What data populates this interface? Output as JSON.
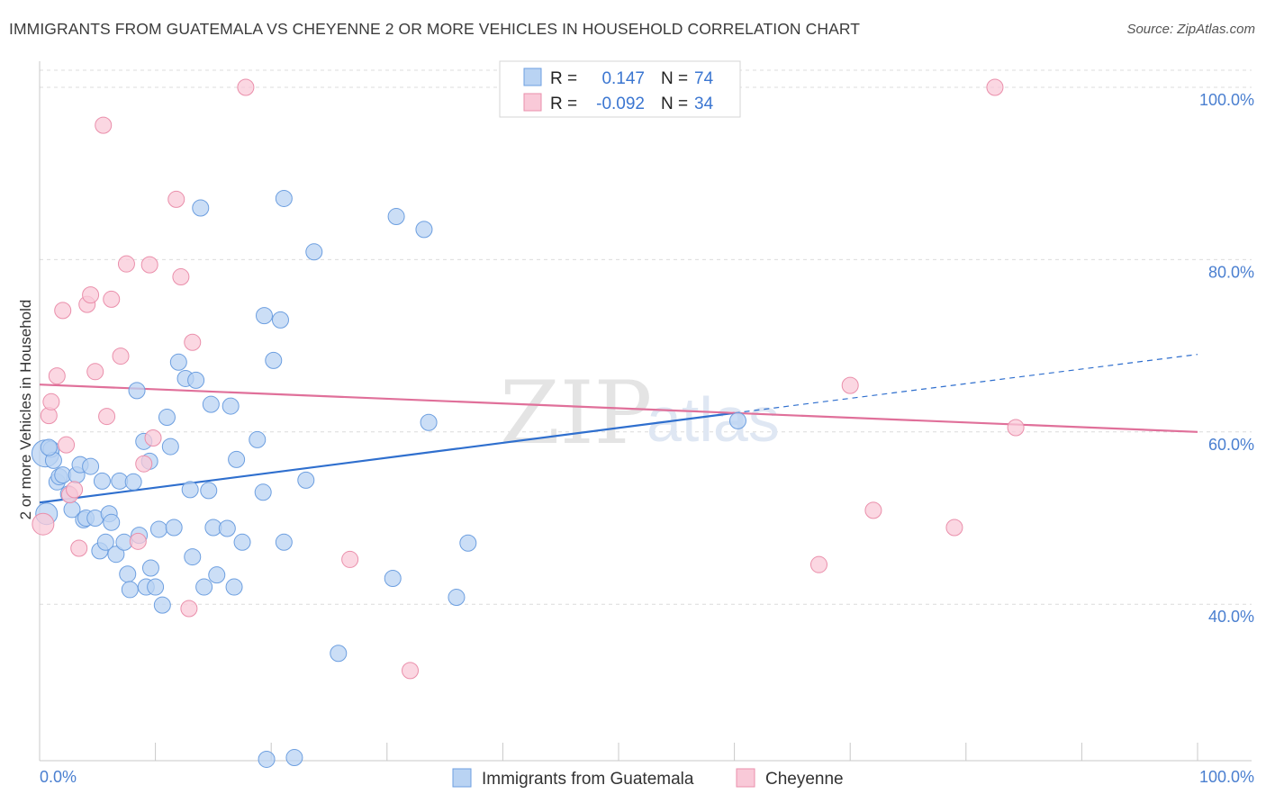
{
  "title": "IMMIGRANTS FROM GUATEMALA VS CHEYENNE 2 OR MORE VEHICLES IN HOUSEHOLD CORRELATION CHART",
  "source": "Source: ZipAtlas.com",
  "watermark": {
    "zip": "ZIP",
    "atlas": "atlas"
  },
  "colors": {
    "blue_fill": "#b9d3f3",
    "blue_stroke": "#6d9fe0",
    "blue_line": "#2f6fce",
    "pink_fill": "#f9c9d8",
    "pink_stroke": "#ea8fab",
    "pink_line": "#e0709a",
    "grid": "#dcdcdc",
    "axis_text": "#4a7fd0"
  },
  "legend": {
    "rows": [
      {
        "r_label": "R =",
        "r_value": "0.147",
        "n_label": "N =",
        "n_value": "74",
        "color": "blue"
      },
      {
        "r_label": "R =",
        "r_value": "-0.092",
        "n_label": "N =",
        "n_value": "34",
        "color": "pink"
      }
    ]
  },
  "chart_data": {
    "type": "scatter",
    "xlabel": "",
    "ylabel": "2 or more Vehicles in Household",
    "xlim": [
      0,
      100
    ],
    "ylim": [
      20,
      103
    ],
    "x_tick_labels": [
      "0.0%",
      "100.0%"
    ],
    "y_ticks": [
      40,
      60,
      80,
      100
    ],
    "y_tick_labels": [
      "40.0%",
      "60.0%",
      "80.0%",
      "100.0%"
    ],
    "grid": true,
    "legend_position": "top-center",
    "series": [
      {
        "name": "Immigrants from Guatemala",
        "color": "blue",
        "points": [
          [
            0.5,
            57.5
          ],
          [
            0.6,
            50.5
          ],
          [
            1.0,
            58.0
          ],
          [
            1.2,
            56.7
          ],
          [
            1.5,
            54.2
          ],
          [
            1.7,
            54.8
          ],
          [
            2.0,
            55.0
          ],
          [
            2.5,
            52.8
          ],
          [
            2.8,
            51.0
          ],
          [
            3.2,
            55.0
          ],
          [
            3.5,
            56.2
          ],
          [
            3.8,
            49.8
          ],
          [
            4.0,
            50.0
          ],
          [
            4.4,
            56.0
          ],
          [
            4.8,
            50.0
          ],
          [
            5.2,
            46.2
          ],
          [
            5.4,
            54.3
          ],
          [
            5.7,
            47.2
          ],
          [
            6.0,
            50.5
          ],
          [
            6.2,
            49.5
          ],
          [
            6.6,
            45.8
          ],
          [
            6.9,
            54.3
          ],
          [
            7.3,
            47.2
          ],
          [
            7.6,
            43.5
          ],
          [
            7.8,
            41.7
          ],
          [
            8.1,
            54.2
          ],
          [
            8.4,
            64.8
          ],
          [
            8.6,
            48.0
          ],
          [
            9.0,
            58.9
          ],
          [
            9.2,
            42.0
          ],
          [
            9.5,
            56.6
          ],
          [
            9.6,
            44.2
          ],
          [
            10.0,
            42.0
          ],
          [
            10.3,
            48.7
          ],
          [
            10.6,
            39.9
          ],
          [
            11.0,
            61.7
          ],
          [
            11.3,
            58.3
          ],
          [
            11.6,
            48.9
          ],
          [
            12.0,
            68.1
          ],
          [
            12.6,
            66.2
          ],
          [
            13.0,
            53.3
          ],
          [
            13.2,
            45.5
          ],
          [
            13.5,
            66.0
          ],
          [
            13.9,
            86.0
          ],
          [
            14.2,
            42.0
          ],
          [
            14.6,
            53.2
          ],
          [
            14.8,
            63.2
          ],
          [
            15.0,
            48.9
          ],
          [
            15.3,
            43.4
          ],
          [
            16.2,
            48.8
          ],
          [
            16.5,
            63.0
          ],
          [
            16.8,
            42.0
          ],
          [
            17.0,
            56.8
          ],
          [
            17.5,
            47.2
          ],
          [
            18.8,
            59.1
          ],
          [
            19.3,
            53.0
          ],
          [
            19.4,
            73.5
          ],
          [
            19.6,
            22.0
          ],
          [
            20.2,
            68.3
          ],
          [
            20.8,
            73.0
          ],
          [
            21.1,
            87.1
          ],
          [
            21.1,
            47.2
          ],
          [
            22.0,
            22.2
          ],
          [
            23.0,
            54.4
          ],
          [
            23.7,
            80.9
          ],
          [
            25.8,
            34.3
          ],
          [
            30.5,
            43.0
          ],
          [
            30.8,
            85.0
          ],
          [
            33.2,
            83.5
          ],
          [
            33.6,
            61.1
          ],
          [
            36.0,
            40.8
          ],
          [
            37.0,
            47.1
          ],
          [
            60.3,
            61.3
          ],
          [
            0.8,
            58.2
          ]
        ]
      },
      {
        "name": "Cheyenne",
        "color": "pink",
        "points": [
          [
            0.3,
            49.3
          ],
          [
            0.8,
            61.9
          ],
          [
            1.0,
            63.5
          ],
          [
            1.5,
            66.5
          ],
          [
            2.0,
            74.1
          ],
          [
            2.3,
            58.5
          ],
          [
            2.6,
            52.7
          ],
          [
            3.0,
            53.3
          ],
          [
            3.4,
            46.5
          ],
          [
            4.1,
            74.8
          ],
          [
            4.4,
            75.9
          ],
          [
            4.8,
            67.0
          ],
          [
            5.5,
            95.6
          ],
          [
            5.8,
            61.8
          ],
          [
            6.2,
            75.4
          ],
          [
            7.0,
            68.8
          ],
          [
            7.5,
            79.5
          ],
          [
            8.5,
            47.3
          ],
          [
            9.0,
            56.3
          ],
          [
            9.5,
            79.4
          ],
          [
            9.8,
            59.3
          ],
          [
            11.8,
            87.0
          ],
          [
            12.2,
            78.0
          ],
          [
            12.9,
            39.5
          ],
          [
            13.2,
            70.4
          ],
          [
            17.8,
            100.0
          ],
          [
            26.8,
            45.2
          ],
          [
            32.0,
            32.3
          ],
          [
            67.3,
            44.6
          ],
          [
            70.0,
            65.4
          ],
          [
            72.0,
            50.9
          ],
          [
            79.0,
            48.9
          ],
          [
            82.5,
            100.0
          ],
          [
            84.3,
            60.5
          ]
        ]
      }
    ],
    "trend_lines": [
      {
        "series": "Immigrants from Guatemala",
        "x": [
          0,
          60
        ],
        "y": [
          51.8,
          62.2
        ],
        "extend_dashed_to": [
          100,
          69.0
        ]
      },
      {
        "series": "Cheyenne",
        "x": [
          0,
          100
        ],
        "y": [
          65.5,
          60.0
        ]
      }
    ]
  }
}
